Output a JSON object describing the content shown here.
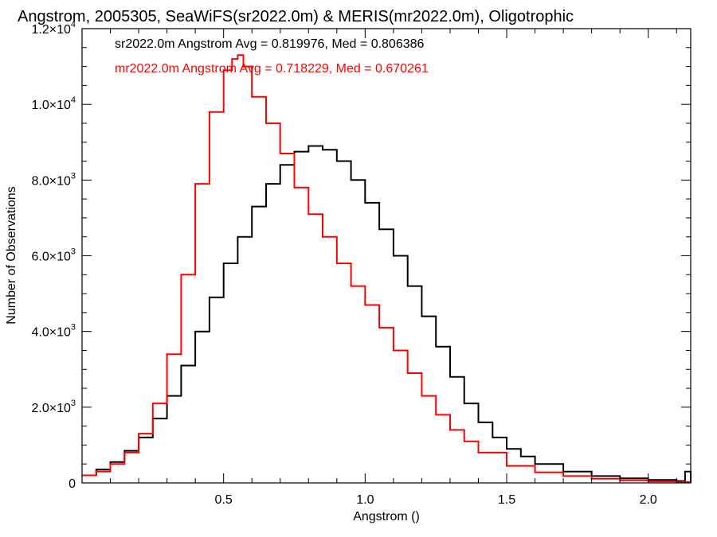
{
  "chart_data": {
    "type": "line",
    "title": "Angstrom, 2005305, SeaWiFS(sr2022.0m) & MERIS(mr2022.0m), Oligotrophic",
    "xlabel": "Angstrom ()",
    "ylabel": "Number of Observations",
    "xlim": [
      0.0,
      2.15
    ],
    "ylim": [
      0,
      12000
    ],
    "x_ticks": [
      0.5,
      1.0,
      1.5,
      2.0
    ],
    "x_tick_labels": [
      "0.5",
      "1.0",
      "1.5",
      "2.0"
    ],
    "y_ticks": [
      0,
      2000,
      4000,
      6000,
      8000,
      10000,
      12000
    ],
    "y_tick_labels": [
      {
        "mant": "0",
        "exp": ""
      },
      {
        "mant": "2.0×10",
        "exp": "3"
      },
      {
        "mant": "4.0×10",
        "exp": "3"
      },
      {
        "mant": "6.0×10",
        "exp": "3"
      },
      {
        "mant": "8.0×10",
        "exp": "3"
      },
      {
        "mant": "1.0×10",
        "exp": "4"
      },
      {
        "mant": "1.2×10",
        "exp": "4"
      }
    ],
    "grid": false,
    "legend_position": "top-left",
    "series": [
      {
        "name": "sr2022.0m Angstrom Avg = 0.819976, Med = 0.806386",
        "color": "#000000",
        "x": [
          0.0,
          0.05,
          0.1,
          0.15,
          0.2,
          0.25,
          0.3,
          0.35,
          0.4,
          0.45,
          0.5,
          0.55,
          0.6,
          0.65,
          0.7,
          0.75,
          0.8,
          0.85,
          0.9,
          0.95,
          1.0,
          1.05,
          1.1,
          1.15,
          1.2,
          1.25,
          1.3,
          1.35,
          1.4,
          1.45,
          1.5,
          1.55,
          1.6,
          1.7,
          1.8,
          1.9,
          2.0,
          2.1,
          2.13,
          2.15
        ],
        "y": [
          200,
          350,
          550,
          850,
          1200,
          1700,
          2300,
          3100,
          4000,
          4900,
          5800,
          6500,
          7300,
          7900,
          8400,
          8750,
          8900,
          8800,
          8500,
          8000,
          7400,
          6700,
          6000,
          5200,
          4400,
          3600,
          2800,
          2100,
          1600,
          1200,
          900,
          700,
          500,
          300,
          180,
          120,
          80,
          50,
          300,
          0
        ]
      },
      {
        "name": "mr2022.0m Angstrom Avg = 0.718229, Med = 0.670261",
        "color": "#ff0000",
        "x": [
          0.0,
          0.05,
          0.1,
          0.15,
          0.2,
          0.25,
          0.3,
          0.35,
          0.4,
          0.45,
          0.5,
          0.53,
          0.55,
          0.57,
          0.6,
          0.65,
          0.7,
          0.75,
          0.8,
          0.85,
          0.9,
          0.95,
          1.0,
          1.05,
          1.1,
          1.15,
          1.2,
          1.25,
          1.3,
          1.35,
          1.4,
          1.5,
          1.6,
          1.7,
          1.8,
          1.9,
          2.0,
          2.1,
          2.15
        ],
        "y": [
          200,
          300,
          500,
          800,
          1300,
          2100,
          3400,
          5500,
          7900,
          9800,
          10900,
          11200,
          11300,
          11000,
          10200,
          9500,
          8700,
          7800,
          7100,
          6500,
          5800,
          5200,
          4700,
          4100,
          3500,
          2900,
          2300,
          1800,
          1400,
          1100,
          800,
          450,
          280,
          180,
          110,
          70,
          40,
          20,
          0
        ]
      }
    ]
  }
}
